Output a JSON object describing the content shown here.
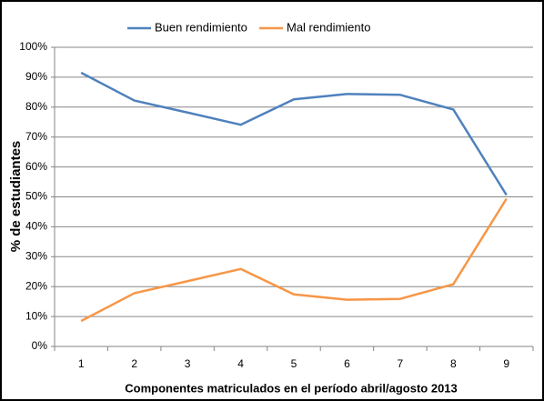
{
  "chart_data": {
    "type": "line",
    "x_label": "Componentes matriculados en el período abril/agosto 2013",
    "y_label": "% de estudiantes",
    "categories": [
      "1",
      "2",
      "3",
      "4",
      "5",
      "6",
      "7",
      "8",
      "9"
    ],
    "series": [
      {
        "name": "Buen rendimiento",
        "color": "#4f81bd",
        "values": [
          91.5,
          82.2,
          78.2,
          74.1,
          82.6,
          84.4,
          84.1,
          79.2,
          50.6
        ]
      },
      {
        "name": "Mal rendimiento",
        "color": "#f79646",
        "values": [
          8.5,
          17.8,
          21.8,
          25.9,
          17.4,
          15.6,
          15.9,
          20.8,
          49.4
        ]
      }
    ],
    "ylim": [
      0,
      100
    ],
    "yticks": [
      {
        "value": 0,
        "label": "0%"
      },
      {
        "value": 10,
        "label": "10%"
      },
      {
        "value": 20,
        "label": "20%"
      },
      {
        "value": 30,
        "label": "30%"
      },
      {
        "value": 40,
        "label": "40%"
      },
      {
        "value": 50,
        "label": "50%"
      },
      {
        "value": 60,
        "label": "60%"
      },
      {
        "value": 70,
        "label": "70%"
      },
      {
        "value": 80,
        "label": "80%"
      },
      {
        "value": 90,
        "label": "90%"
      },
      {
        "value": 100,
        "label": "100%"
      }
    ],
    "grid": true,
    "legend": "top"
  }
}
